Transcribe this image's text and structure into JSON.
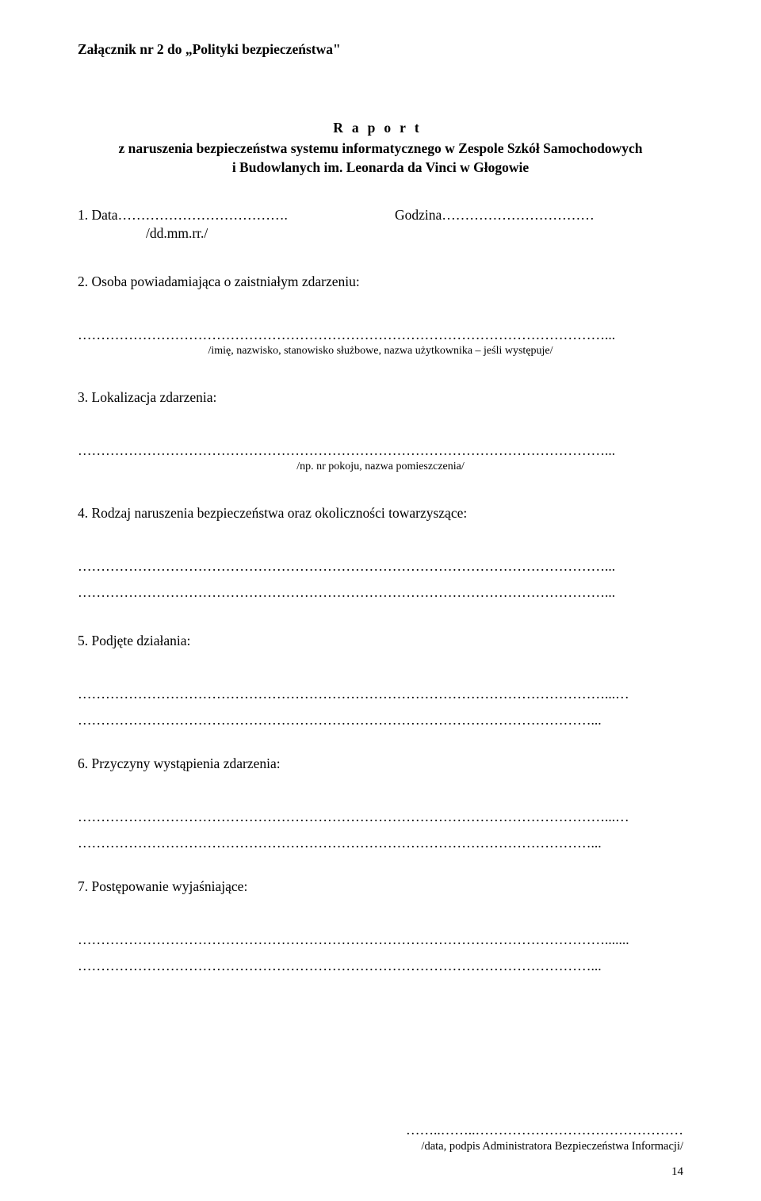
{
  "attachment_title": "Załącznik nr 2 do „Polityki bezpieczeństwa\"",
  "report": {
    "heading_spaced": "Raport",
    "subtitle_line1": "z naruszenia bezpieczeństwa systemu informatycznego w Zespole Szkół Samochodowych",
    "subtitle_line2": "i Budowlanych im. Leonarda da Vinci w Głogowie"
  },
  "item1": {
    "left": "1. Data……………………………….",
    "right": "Godzina……………………………",
    "hint": "/dd.mm.rr./"
  },
  "item2": {
    "label": "2. Osoba powiadamiająca o zaistniałym zdarzeniu:",
    "dots": "……………………………………………………………………………………………………...",
    "hint": "/imię, nazwisko, stanowisko służbowe, nazwa użytkownika – jeśli występuje/"
  },
  "item3": {
    "label": "3. Lokalizacja zdarzenia:",
    "dots": "……………………………………………………………………………………………………...",
    "hint": "/np. nr pokoju, nazwa pomieszczenia/"
  },
  "item4": {
    "label": "4. Rodzaj naruszenia bezpieczeństwa oraz okoliczności towarzyszące:",
    "dots1": "……………………………………………………………………………………………………...",
    "dots2": "……………………………………………………………………………………………………..."
  },
  "item5": {
    "label": "5. Podjęte działania:",
    "dots1": "……………………………………………………………………………………………………...…",
    "dots2": "…………………………………………………………………………………………………..."
  },
  "item6": {
    "label": "6. Przyczyny wystąpienia zdarzenia:",
    "dots1": "……………………………………………………………………………………………………...…",
    "dots2": "…………………………………………………………………………………………………..."
  },
  "item7": {
    "label": "7. Postępowanie wyjaśniające:",
    "dots1": "…………………………………………………………………………………………………….......",
    "dots2": "…………………………………………………………………………………………………..."
  },
  "footer": {
    "dots": "……..……..………………………………………",
    "hint": "/data, podpis Administratora Bezpieczeństwa Informacji/"
  },
  "page_number": "14"
}
